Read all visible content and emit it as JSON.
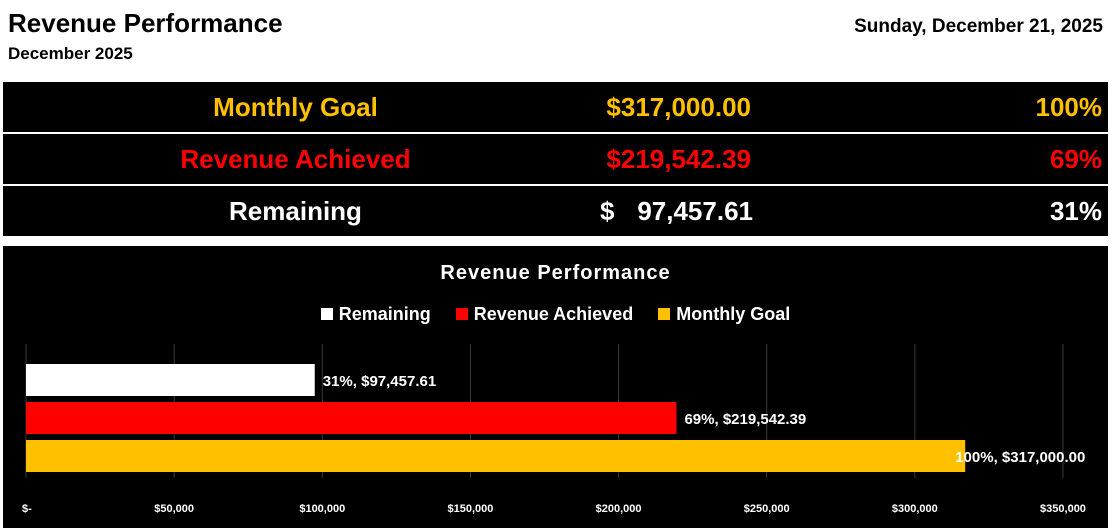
{
  "header": {
    "title": "Revenue Performance",
    "subtitle": "December 2025",
    "date": "Sunday, December 21, 2025"
  },
  "summary": {
    "goal": {
      "label": "Monthly Goal",
      "amount": "$317,000.00",
      "percent": "100%",
      "color": "#FFC000"
    },
    "achieved": {
      "label": "Revenue Achieved",
      "amount": "$219,542.39",
      "percent": "69%",
      "color": "#FF0000"
    },
    "remaining": {
      "label": "Remaining",
      "amount_symbol": "$",
      "amount_number": "97,457.61",
      "percent": "31%",
      "color": "#FFFFFF"
    }
  },
  "chart_data": {
    "type": "bar",
    "orientation": "horizontal",
    "title": "Revenue Performance",
    "legend": [
      {
        "name": "Remaining",
        "color": "#FFFFFF"
      },
      {
        "name": "Revenue Achieved",
        "color": "#FF0000"
      },
      {
        "name": "Monthly Goal",
        "color": "#FFC000"
      }
    ],
    "series": [
      {
        "name": "Remaining",
        "value": 97457.61,
        "label": "31%, $97,457.61",
        "color": "#FFFFFF"
      },
      {
        "name": "Revenue Achieved",
        "value": 219542.39,
        "label": "69%, $219,542.39",
        "color": "#FF0000"
      },
      {
        "name": "Monthly Goal",
        "value": 317000.0,
        "label": "100%, $317,000.00",
        "color": "#FFC000"
      }
    ],
    "xlim": [
      0,
      350000
    ],
    "xticks": [
      0,
      50000,
      100000,
      150000,
      200000,
      250000,
      300000,
      350000
    ],
    "xtick_labels": [
      "$-",
      "$50,000",
      "$100,000",
      "$150,000",
      "$200,000",
      "$250,000",
      "$300,000",
      "$350,000"
    ],
    "grid": true,
    "legend_position": "top"
  }
}
